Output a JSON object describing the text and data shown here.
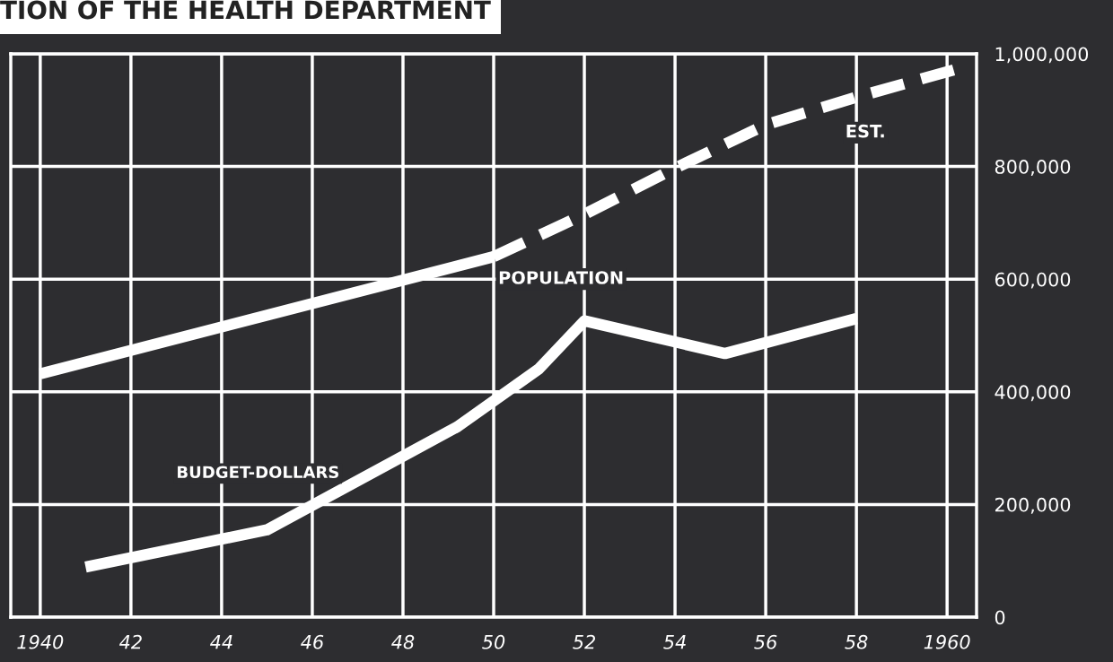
{
  "chart_data": {
    "type": "line",
    "title": "TION OF THE HEALTH DEPARTMENT",
    "series": [
      {
        "name": "POPULATION",
        "color": "#ffffff",
        "x": [
          1940,
          1950
        ],
        "values": [
          432000,
          640000
        ],
        "line_style": "solid"
      },
      {
        "color": "#ffffff",
        "x": [
          1950,
          1952,
          1954,
          1956,
          1958,
          1960.3
        ],
        "values": [
          640000,
          715000,
          797000,
          874000,
          923000,
          975000
        ],
        "line_style": "dashed"
      },
      {
        "name": "BUDGET-DOLLARS",
        "color": "#ffffff",
        "x": [
          1941,
          1945,
          1949.2,
          1951,
          1952,
          1955.1,
          1958
        ],
        "values": [
          89000,
          155000,
          338000,
          441000,
          526000,
          468000,
          530000
        ],
        "line_style": "solid"
      }
    ],
    "annotations": [
      "EST."
    ],
    "xlim": [
      1939.35,
      1960.65
    ],
    "xticks": [
      1940,
      {
        "value": 1942,
        "label": "42"
      },
      {
        "value": 1944,
        "label": "44"
      },
      {
        "value": 1946,
        "label": "46"
      },
      {
        "value": 1948,
        "label": "48"
      },
      {
        "value": 1950,
        "label": "50"
      },
      {
        "value": 1952,
        "label": "52"
      },
      {
        "value": 1954,
        "label": "54"
      },
      {
        "value": 1956,
        "label": "56"
      },
      {
        "value": 1958,
        "label": "58"
      },
      1960
    ],
    "ylim": [
      0,
      1000000
    ],
    "yticks": [
      0,
      {
        "value": 200000,
        "label": "200,000"
      },
      {
        "value": 400000,
        "label": "400,000"
      },
      {
        "value": 600000,
        "label": "600,000"
      },
      {
        "value": 800000,
        "label": "800,000"
      },
      {
        "value": 1000000,
        "label": "1,000,000"
      }
    ],
    "grid": true,
    "legend": false,
    "marker": "none"
  }
}
